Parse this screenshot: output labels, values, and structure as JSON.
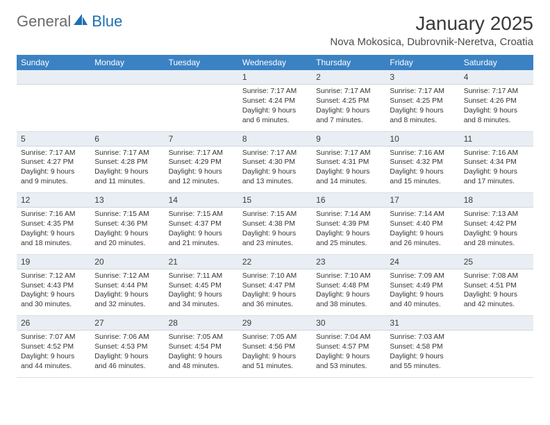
{
  "brand": {
    "word1": "General",
    "word2": "Blue",
    "word2_color": "#1f6fb2",
    "sail_color": "#1f6fb2"
  },
  "title": "January 2025",
  "location": "Nova Mokosica, Dubrovnik-Neretva, Croatia",
  "colors": {
    "header_bg": "#3b82c4",
    "header_text": "#ffffff",
    "daynum_bg": "#e8eef3",
    "text": "#333333",
    "rule": "#d0d7dd"
  },
  "fonts": {
    "title_size": 28,
    "location_size": 15,
    "weekday_size": 12,
    "daynum_size": 12,
    "detail_size": 10.3
  },
  "weekdays": [
    "Sunday",
    "Monday",
    "Tuesday",
    "Wednesday",
    "Thursday",
    "Friday",
    "Saturday"
  ],
  "weeks": [
    [
      {},
      {},
      {},
      {
        "n": "1",
        "sr": "Sunrise: 7:17 AM",
        "ss": "Sunset: 4:24 PM",
        "d1": "Daylight: 9 hours",
        "d2": "and 6 minutes."
      },
      {
        "n": "2",
        "sr": "Sunrise: 7:17 AM",
        "ss": "Sunset: 4:25 PM",
        "d1": "Daylight: 9 hours",
        "d2": "and 7 minutes."
      },
      {
        "n": "3",
        "sr": "Sunrise: 7:17 AM",
        "ss": "Sunset: 4:25 PM",
        "d1": "Daylight: 9 hours",
        "d2": "and 8 minutes."
      },
      {
        "n": "4",
        "sr": "Sunrise: 7:17 AM",
        "ss": "Sunset: 4:26 PM",
        "d1": "Daylight: 9 hours",
        "d2": "and 8 minutes."
      }
    ],
    [
      {
        "n": "5",
        "sr": "Sunrise: 7:17 AM",
        "ss": "Sunset: 4:27 PM",
        "d1": "Daylight: 9 hours",
        "d2": "and 9 minutes."
      },
      {
        "n": "6",
        "sr": "Sunrise: 7:17 AM",
        "ss": "Sunset: 4:28 PM",
        "d1": "Daylight: 9 hours",
        "d2": "and 11 minutes."
      },
      {
        "n": "7",
        "sr": "Sunrise: 7:17 AM",
        "ss": "Sunset: 4:29 PM",
        "d1": "Daylight: 9 hours",
        "d2": "and 12 minutes."
      },
      {
        "n": "8",
        "sr": "Sunrise: 7:17 AM",
        "ss": "Sunset: 4:30 PM",
        "d1": "Daylight: 9 hours",
        "d2": "and 13 minutes."
      },
      {
        "n": "9",
        "sr": "Sunrise: 7:17 AM",
        "ss": "Sunset: 4:31 PM",
        "d1": "Daylight: 9 hours",
        "d2": "and 14 minutes."
      },
      {
        "n": "10",
        "sr": "Sunrise: 7:16 AM",
        "ss": "Sunset: 4:32 PM",
        "d1": "Daylight: 9 hours",
        "d2": "and 15 minutes."
      },
      {
        "n": "11",
        "sr": "Sunrise: 7:16 AM",
        "ss": "Sunset: 4:34 PM",
        "d1": "Daylight: 9 hours",
        "d2": "and 17 minutes."
      }
    ],
    [
      {
        "n": "12",
        "sr": "Sunrise: 7:16 AM",
        "ss": "Sunset: 4:35 PM",
        "d1": "Daylight: 9 hours",
        "d2": "and 18 minutes."
      },
      {
        "n": "13",
        "sr": "Sunrise: 7:15 AM",
        "ss": "Sunset: 4:36 PM",
        "d1": "Daylight: 9 hours",
        "d2": "and 20 minutes."
      },
      {
        "n": "14",
        "sr": "Sunrise: 7:15 AM",
        "ss": "Sunset: 4:37 PM",
        "d1": "Daylight: 9 hours",
        "d2": "and 21 minutes."
      },
      {
        "n": "15",
        "sr": "Sunrise: 7:15 AM",
        "ss": "Sunset: 4:38 PM",
        "d1": "Daylight: 9 hours",
        "d2": "and 23 minutes."
      },
      {
        "n": "16",
        "sr": "Sunrise: 7:14 AM",
        "ss": "Sunset: 4:39 PM",
        "d1": "Daylight: 9 hours",
        "d2": "and 25 minutes."
      },
      {
        "n": "17",
        "sr": "Sunrise: 7:14 AM",
        "ss": "Sunset: 4:40 PM",
        "d1": "Daylight: 9 hours",
        "d2": "and 26 minutes."
      },
      {
        "n": "18",
        "sr": "Sunrise: 7:13 AM",
        "ss": "Sunset: 4:42 PM",
        "d1": "Daylight: 9 hours",
        "d2": "and 28 minutes."
      }
    ],
    [
      {
        "n": "19",
        "sr": "Sunrise: 7:12 AM",
        "ss": "Sunset: 4:43 PM",
        "d1": "Daylight: 9 hours",
        "d2": "and 30 minutes."
      },
      {
        "n": "20",
        "sr": "Sunrise: 7:12 AM",
        "ss": "Sunset: 4:44 PM",
        "d1": "Daylight: 9 hours",
        "d2": "and 32 minutes."
      },
      {
        "n": "21",
        "sr": "Sunrise: 7:11 AM",
        "ss": "Sunset: 4:45 PM",
        "d1": "Daylight: 9 hours",
        "d2": "and 34 minutes."
      },
      {
        "n": "22",
        "sr": "Sunrise: 7:10 AM",
        "ss": "Sunset: 4:47 PM",
        "d1": "Daylight: 9 hours",
        "d2": "and 36 minutes."
      },
      {
        "n": "23",
        "sr": "Sunrise: 7:10 AM",
        "ss": "Sunset: 4:48 PM",
        "d1": "Daylight: 9 hours",
        "d2": "and 38 minutes."
      },
      {
        "n": "24",
        "sr": "Sunrise: 7:09 AM",
        "ss": "Sunset: 4:49 PM",
        "d1": "Daylight: 9 hours",
        "d2": "and 40 minutes."
      },
      {
        "n": "25",
        "sr": "Sunrise: 7:08 AM",
        "ss": "Sunset: 4:51 PM",
        "d1": "Daylight: 9 hours",
        "d2": "and 42 minutes."
      }
    ],
    [
      {
        "n": "26",
        "sr": "Sunrise: 7:07 AM",
        "ss": "Sunset: 4:52 PM",
        "d1": "Daylight: 9 hours",
        "d2": "and 44 minutes."
      },
      {
        "n": "27",
        "sr": "Sunrise: 7:06 AM",
        "ss": "Sunset: 4:53 PM",
        "d1": "Daylight: 9 hours",
        "d2": "and 46 minutes."
      },
      {
        "n": "28",
        "sr": "Sunrise: 7:05 AM",
        "ss": "Sunset: 4:54 PM",
        "d1": "Daylight: 9 hours",
        "d2": "and 48 minutes."
      },
      {
        "n": "29",
        "sr": "Sunrise: 7:05 AM",
        "ss": "Sunset: 4:56 PM",
        "d1": "Daylight: 9 hours",
        "d2": "and 51 minutes."
      },
      {
        "n": "30",
        "sr": "Sunrise: 7:04 AM",
        "ss": "Sunset: 4:57 PM",
        "d1": "Daylight: 9 hours",
        "d2": "and 53 minutes."
      },
      {
        "n": "31",
        "sr": "Sunrise: 7:03 AM",
        "ss": "Sunset: 4:58 PM",
        "d1": "Daylight: 9 hours",
        "d2": "and 55 minutes."
      },
      {}
    ]
  ]
}
